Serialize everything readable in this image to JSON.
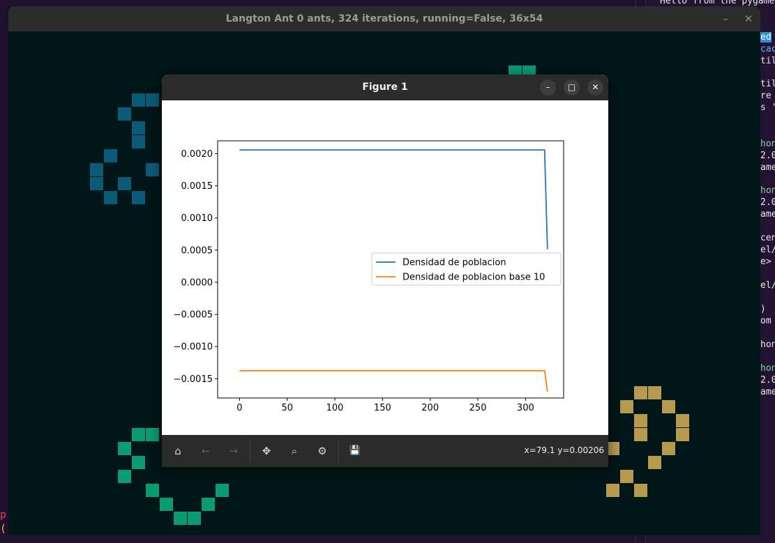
{
  "pygame_window": {
    "title": "Langton Ant 0 ants, 324 iterations, running=False, 36x54",
    "minimize_icon": "minimize-icon",
    "close_icon": "close-icon",
    "cell_colors": {
      "blue": "#0b5a78",
      "green": "#0b9b74",
      "gold": "#b89a4f"
    },
    "background_color": "#001618"
  },
  "terminal": {
    "top_text": "Hello from the pygame",
    "lines": [
      {
        "text": "ed",
        "style": "hl"
      },
      {
        "text": "cac",
        "style": "cy"
      },
      {
        "text": "til",
        "style": ""
      },
      {
        "text": "til",
        "style": ""
      },
      {
        "text": "re",
        "style": ""
      },
      {
        "text": "s '",
        "style": ""
      },
      {
        "text": "hon",
        "style": "gr"
      },
      {
        "text": "2.0",
        "style": ""
      },
      {
        "text": "ame",
        "style": ""
      },
      {
        "text": "hon",
        "style": "gr"
      },
      {
        "text": "2.0",
        "style": ""
      },
      {
        "text": "ame",
        "style": ""
      },
      {
        "text": "cen",
        "style": ""
      },
      {
        "text": "el/",
        "style": ""
      },
      {
        "text": "e>",
        "style": ""
      },
      {
        "text": "el/",
        "style": ""
      },
      {
        "text": ")",
        "style": ""
      },
      {
        "text": "om",
        "style": ""
      },
      {
        "text": "hon",
        "style": ""
      },
      {
        "text": "hon",
        "style": "gr"
      },
      {
        "text": "2.0",
        "style": ""
      },
      {
        "text": "ame",
        "style": ""
      }
    ],
    "left_glyphs": [
      "p",
      "("
    ]
  },
  "figure_window": {
    "title": "Figure 1",
    "buttons": {
      "minimize": "–",
      "maximize": "□",
      "close": "✕"
    },
    "toolbar": {
      "home_icon": "⌂",
      "back_icon": "←",
      "forward_icon": "→",
      "pan_icon": "✥",
      "zoom_icon": "⌕",
      "configure_icon": "⚙",
      "save_icon": "💾",
      "coordinates": "x=79.1 y=0.00206"
    }
  },
  "chart_data": {
    "type": "line",
    "title": "",
    "xlabel": "",
    "ylabel": "",
    "xlim": [
      -23,
      340
    ],
    "ylim": [
      -0.0018,
      0.0022
    ],
    "xticks": [
      0,
      50,
      100,
      150,
      200,
      250,
      300
    ],
    "yticks": [
      0.002,
      0.0015,
      0.001,
      0.0005,
      0.0,
      -0.0005,
      -0.001,
      -0.0015
    ],
    "ytick_labels": [
      "0.0020",
      "0.0015",
      "0.0010",
      "0.0005",
      "0.0000",
      "−0.0005",
      "−0.0010",
      "−0.0015"
    ],
    "grid": false,
    "legend_position": "center-right",
    "series": [
      {
        "name": "Densidad de poblacion",
        "color": "#1f77b4",
        "x": [
          0,
          320,
          323
        ],
        "y": [
          0.002058,
          0.002058,
          0.000514
        ]
      },
      {
        "name": "Densidad de poblacion base 10",
        "color": "#ff7f0e",
        "x": [
          0,
          320,
          323
        ],
        "y": [
          -0.001375,
          -0.001375,
          -0.0017
        ]
      }
    ]
  }
}
